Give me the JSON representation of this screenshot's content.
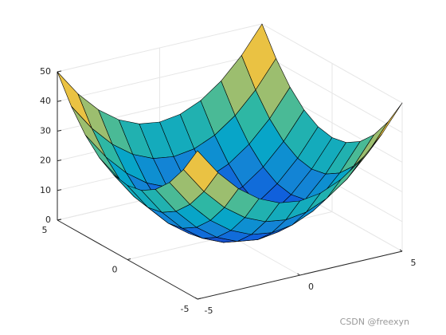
{
  "chart_data": {
    "type": "surface",
    "x": [
      -5,
      -4,
      -3,
      -2,
      -1,
      0,
      1,
      2,
      3,
      4,
      5
    ],
    "y": [
      -5,
      -4,
      -3,
      -2,
      -1,
      0,
      1,
      2,
      3,
      4,
      5
    ],
    "z": [
      [
        50,
        41,
        34,
        29,
        26,
        25,
        26,
        29,
        34,
        41,
        50
      ],
      [
        41,
        32,
        25,
        20,
        17,
        16,
        17,
        20,
        25,
        32,
        41
      ],
      [
        34,
        25,
        18,
        13,
        10,
        9,
        10,
        13,
        18,
        25,
        34
      ],
      [
        29,
        20,
        13,
        8,
        5,
        4,
        5,
        8,
        13,
        20,
        29
      ],
      [
        26,
        17,
        10,
        5,
        2,
        1,
        2,
        5,
        10,
        17,
        26
      ],
      [
        25,
        16,
        9,
        4,
        1,
        0,
        1,
        4,
        9,
        16,
        25
      ],
      [
        26,
        17,
        10,
        5,
        2,
        1,
        2,
        5,
        10,
        17,
        26
      ],
      [
        29,
        20,
        13,
        8,
        5,
        4,
        5,
        8,
        13,
        20,
        29
      ],
      [
        34,
        25,
        18,
        13,
        10,
        9,
        10,
        13,
        18,
        25,
        34
      ],
      [
        41,
        32,
        25,
        20,
        17,
        16,
        17,
        20,
        25,
        32,
        41
      ],
      [
        50,
        41,
        34,
        29,
        26,
        25,
        26,
        29,
        34,
        41,
        50
      ]
    ],
    "xlim": [
      -5,
      5
    ],
    "ylim": [
      -5,
      5
    ],
    "zlim": [
      0,
      50
    ],
    "xticks": [
      -5,
      0,
      5
    ],
    "yticks": [
      -5,
      0,
      5
    ],
    "zticks": [
      0,
      10,
      20,
      30,
      40,
      50
    ],
    "grid": true,
    "colormap": "parula",
    "edge_color": "#000000",
    "watermark": "CSDN @freexyn"
  }
}
